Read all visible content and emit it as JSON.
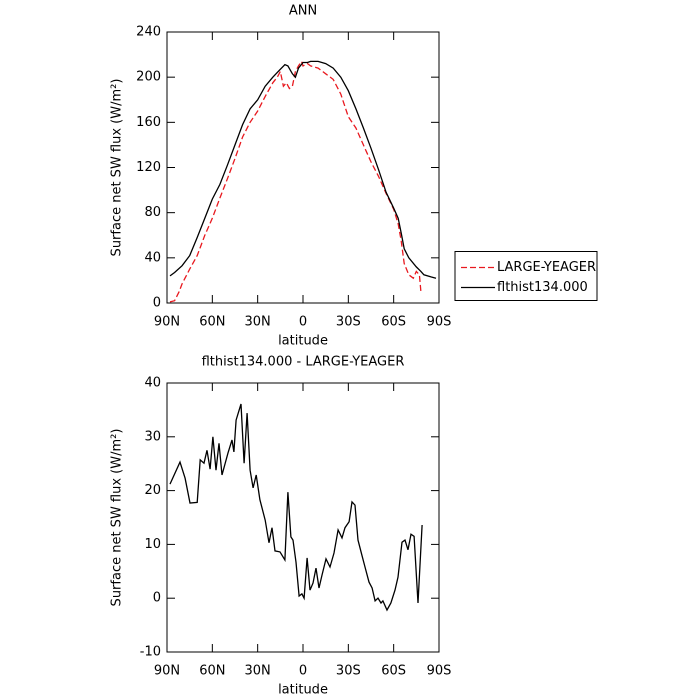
{
  "chart_data": [
    {
      "type": "line",
      "title": "ANN",
      "xlabel": "latitude",
      "ylabel": "Surface net SW flux (W/m²)",
      "xlim": [
        90,
        -90
      ],
      "ylim": [
        0,
        240
      ],
      "xticks": [
        {
          "value": 90,
          "label": "90N"
        },
        {
          "value": 60,
          "label": "60N"
        },
        {
          "value": 30,
          "label": "30N"
        },
        0,
        {
          "value": -30,
          "label": "30S"
        },
        {
          "value": -60,
          "label": "60S"
        },
        {
          "value": -90,
          "label": "90S"
        }
      ],
      "yticks": [
        0,
        40,
        80,
        120,
        160,
        200,
        240
      ],
      "legend": "right",
      "series": [
        {
          "name": "LARGE-YEAGER",
          "color": "#e8191f",
          "dash": true,
          "x": [
            88,
            85,
            82,
            80,
            75,
            70,
            65,
            60,
            55,
            50,
            45,
            40,
            35,
            30,
            25,
            20,
            17,
            15,
            13,
            11,
            9,
            7,
            5,
            3,
            1,
            0,
            -3,
            -5,
            -10,
            -15,
            -20,
            -25,
            -30,
            -35,
            -40,
            -45,
            -50,
            -55,
            -60,
            -63,
            -65,
            -67,
            -70,
            -73,
            -75,
            -77,
            -78
          ],
          "values": [
            1,
            2,
            10,
            17,
            30,
            42,
            60,
            75,
            93,
            110,
            128,
            147,
            160,
            170,
            183,
            195,
            200,
            205,
            192,
            195,
            190,
            192,
            205,
            210,
            214,
            210,
            212,
            210,
            208,
            203,
            198,
            185,
            165,
            155,
            140,
            125,
            112,
            97,
            83,
            70,
            55,
            35,
            25,
            22,
            28,
            25,
            10
          ]
        },
        {
          "name": "flthist134.000",
          "color": "#000000",
          "dash": false,
          "x": [
            88,
            85,
            80,
            75,
            70,
            65,
            60,
            55,
            50,
            45,
            40,
            35,
            30,
            25,
            20,
            15,
            12,
            10,
            7,
            5,
            3,
            0,
            -3,
            -5,
            -10,
            -15,
            -20,
            -25,
            -30,
            -35,
            -40,
            -45,
            -50,
            -55,
            -60,
            -63,
            -65,
            -67,
            -70,
            -75,
            -78,
            -80,
            -85,
            -88
          ],
          "values": [
            24,
            27,
            33,
            42,
            58,
            75,
            92,
            105,
            122,
            140,
            158,
            172,
            180,
            192,
            200,
            207,
            211,
            210,
            203,
            200,
            208,
            213,
            213,
            214,
            214,
            212,
            208,
            200,
            188,
            172,
            155,
            137,
            118,
            98,
            84,
            75,
            62,
            48,
            40,
            32,
            28,
            25,
            23,
            22
          ]
        }
      ]
    },
    {
      "type": "line",
      "title": "flthist134.000 - LARGE-YEAGER",
      "xlabel": "latitude",
      "ylabel": "Surface net SW flux (W/m²)",
      "xlim": [
        90,
        -90
      ],
      "ylim": [
        -10,
        40
      ],
      "xticks": [
        {
          "value": 90,
          "label": "90N"
        },
        {
          "value": 60,
          "label": "60N"
        },
        {
          "value": 30,
          "label": "30N"
        },
        0,
        {
          "value": -30,
          "label": "30S"
        },
        {
          "value": -60,
          "label": "60S"
        },
        {
          "value": -90,
          "label": "90S"
        }
      ],
      "yticks": [
        -10,
        0,
        10,
        20,
        30,
        40
      ],
      "series": [
        {
          "color": "#000000",
          "dash": false,
          "x": [
            88,
            81.4,
            78,
            74.8,
            70,
            68,
            65.5,
            63.5,
            61.5,
            59.6,
            57.6,
            55.6,
            53.6,
            49.6,
            47,
            45.7,
            44.3,
            41,
            39,
            37,
            35,
            33,
            31,
            28.5,
            25,
            22.5,
            20.5,
            18.5,
            15.2,
            12,
            10,
            8,
            6.6,
            4.6,
            2.6,
            0.7,
            -0.7,
            -2.7,
            -4.6,
            -6.6,
            -8.6,
            -10.6,
            -12.6,
            -15.2,
            -17.9,
            -20.5,
            -23.2,
            -25.8,
            -27.8,
            -30.5,
            -32.4,
            -34.4,
            -36.4,
            -39,
            -41,
            -43.7,
            -45.7,
            -47.7,
            -49.6,
            -51.6,
            -52.9,
            -55.6,
            -58.2,
            -60.9,
            -62.9,
            -65.5,
            -67.5,
            -69.5,
            -71.5,
            -73.5,
            -76.1,
            -78.8
          ],
          "values": [
            21.2,
            25.3,
            22.3,
            17.7,
            17.8,
            25.7,
            25.1,
            27.5,
            24,
            30,
            23.8,
            28.8,
            22.9,
            27,
            29.4,
            27.2,
            33.1,
            36.1,
            25.1,
            34.4,
            23.8,
            20.5,
            22.9,
            18.3,
            14.5,
            10.3,
            13.1,
            8.8,
            8.6,
            7.1,
            19.7,
            11.4,
            10.8,
            6.7,
            0.4,
            0.8,
            0,
            7.5,
            1.5,
            2.8,
            5.6,
            1.9,
            4.3,
            7.3,
            5.8,
            8.4,
            12.7,
            11.2,
            13.1,
            14.2,
            17.9,
            17.3,
            10.8,
            8,
            5.8,
            3,
            1.9,
            -0.5,
            0,
            -0.9,
            -0.5,
            -2.2,
            -0.9,
            1.5,
            3.9,
            10.4,
            10.8,
            9,
            11.9,
            11.5,
            -0.9,
            13.6
          ]
        }
      ]
    }
  ]
}
